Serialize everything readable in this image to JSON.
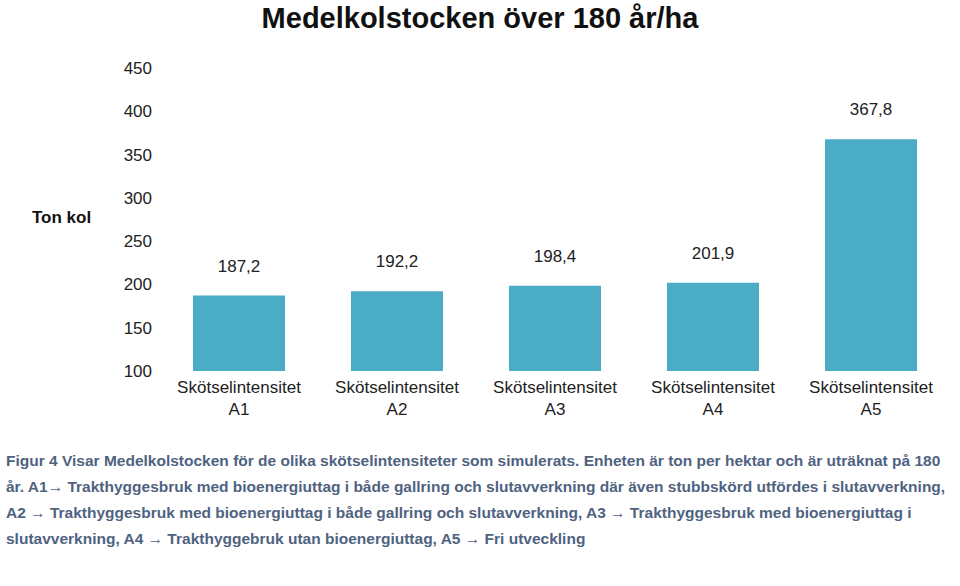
{
  "chart_data": {
    "type": "bar",
    "title": "Medelkolstocken över 180 år/ha",
    "y_label": "Ton kol",
    "categories": [
      "Skötselintensitet A1",
      "Skötselintensitet A2",
      "Skötselintensitet A3",
      "Skötselintensitet A4",
      "Skötselintensitet A5"
    ],
    "values": [
      187.2,
      192.2,
      198.4,
      201.9,
      367.8
    ],
    "value_labels": [
      "187,2",
      "192,2",
      "198,4",
      "201,9",
      "367,8"
    ],
    "color": "#4bacc6",
    "ylim": [
      100,
      450
    ],
    "yticks": [
      100,
      150,
      200,
      250,
      300,
      350,
      400,
      450
    ],
    "grid": false,
    "data_labels": true,
    "caption": "Figur 4 Visar Medelkolstocken för de olika skötselintensiteter som simulerats. Enheten är ton per hektar och är uträknat på 180 år. A1→ Trakthyggesbruk med bioenergiuttag i både gallring och slutavverkning där även stubbskörd utfördes i slutavverkning, A2 → Trakthyggesbruk med bioenergiuttag i både gallring och slutavverkning, A3 → Trakthyggesbruk med bioenergiuttag i slutavverkning, A4 → Trakthyggebruk utan bioenergiuttag, A5 → Fri utveckling"
  }
}
